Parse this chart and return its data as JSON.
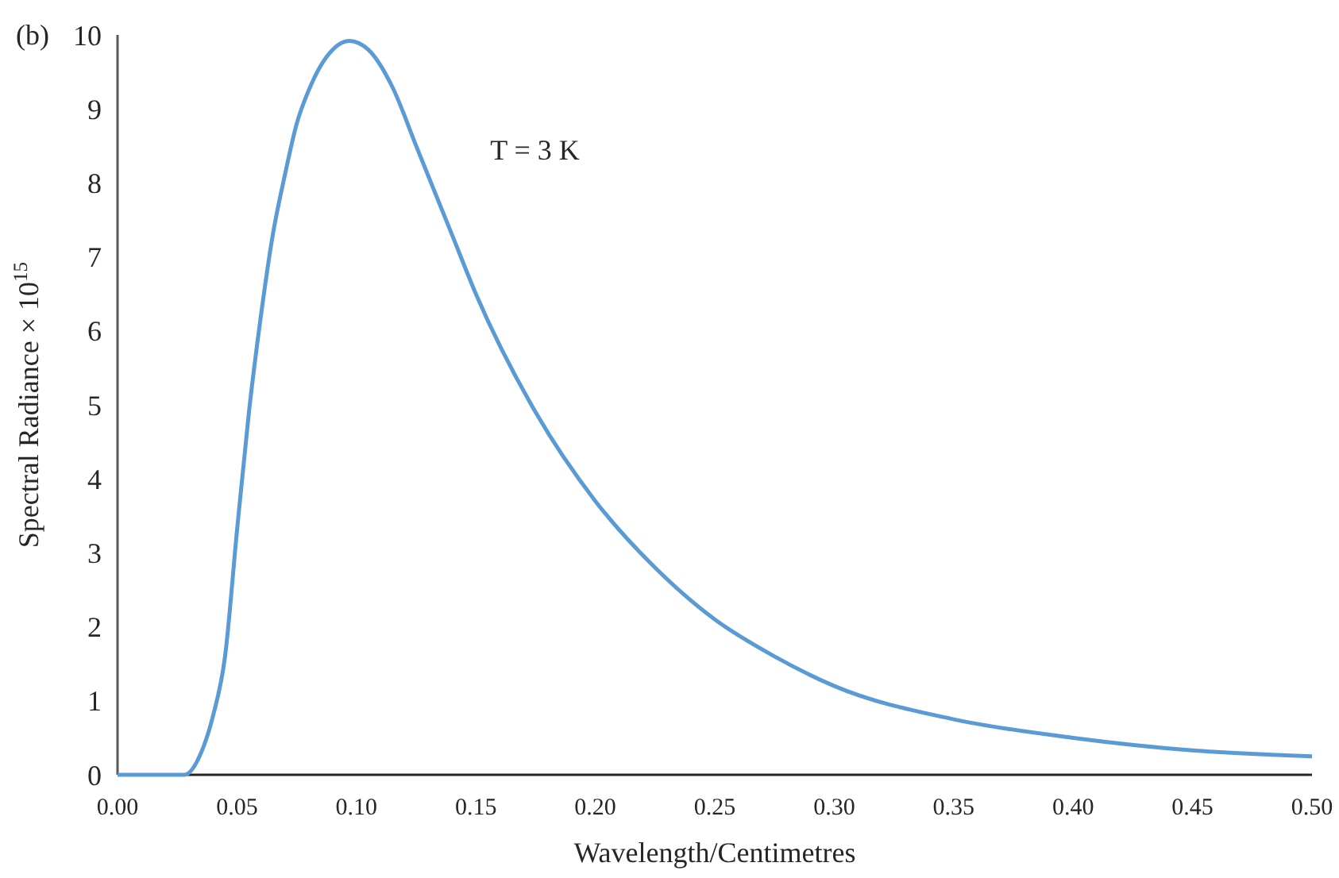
{
  "chart_data": {
    "type": "line",
    "xlabel": "Wavelength/Centimetres",
    "ylabel": "Spectral Radiance × 10$^{15}$",
    "annotations": [
      "(b)",
      "T = 3 K"
    ],
    "x": [
      0,
      0.028,
      0.035,
      0.04,
      0.045,
      0.05,
      0.055,
      0.06,
      0.065,
      0.07,
      0.075,
      0.08,
      0.09,
      0.097,
      0.105,
      0.115,
      0.125,
      0.14,
      0.15,
      0.175,
      0.2,
      0.225,
      0.25,
      0.275,
      0.3,
      0.35,
      0.4,
      0.45,
      0.5
    ],
    "series": [
      {
        "color": "#5b9bd5",
        "values": [
          0,
          0,
          0.3,
          0.8,
          1.6,
          3.3,
          4.9,
          6.2,
          7.3,
          8.1,
          8.8,
          9.25,
          9.8,
          9.92,
          9.8,
          9.3,
          8.5,
          7.3,
          6.5,
          4.9,
          3.7,
          2.8,
          2.1,
          1.6,
          1.2,
          0.75,
          0.5,
          0.33,
          0.25
        ]
      }
    ],
    "xlim": [
      0,
      0.5
    ],
    "xticks": [
      {
        "value": 0,
        "label": "0.00"
      },
      {
        "value": 0.05,
        "label": "0.05"
      },
      {
        "value": 0.1,
        "label": "0.10"
      },
      {
        "value": 0.15,
        "label": "0.15"
      },
      {
        "value": 0.2,
        "label": "0.20"
      },
      {
        "value": 0.25,
        "label": "0.25"
      },
      {
        "value": 0.3,
        "label": "0.30"
      },
      {
        "value": 0.35,
        "label": "0.35"
      },
      {
        "value": 0.4,
        "label": "0.40"
      },
      {
        "value": 0.45,
        "label": "0.45"
      },
      {
        "value": 0.5,
        "label": "0.50"
      }
    ],
    "ylim": [
      0,
      10
    ],
    "yticks": [
      0,
      1,
      2,
      3,
      4,
      5,
      6,
      7,
      8,
      9,
      10
    ],
    "grid": false,
    "marker": "none",
    "line_style": "solid"
  }
}
